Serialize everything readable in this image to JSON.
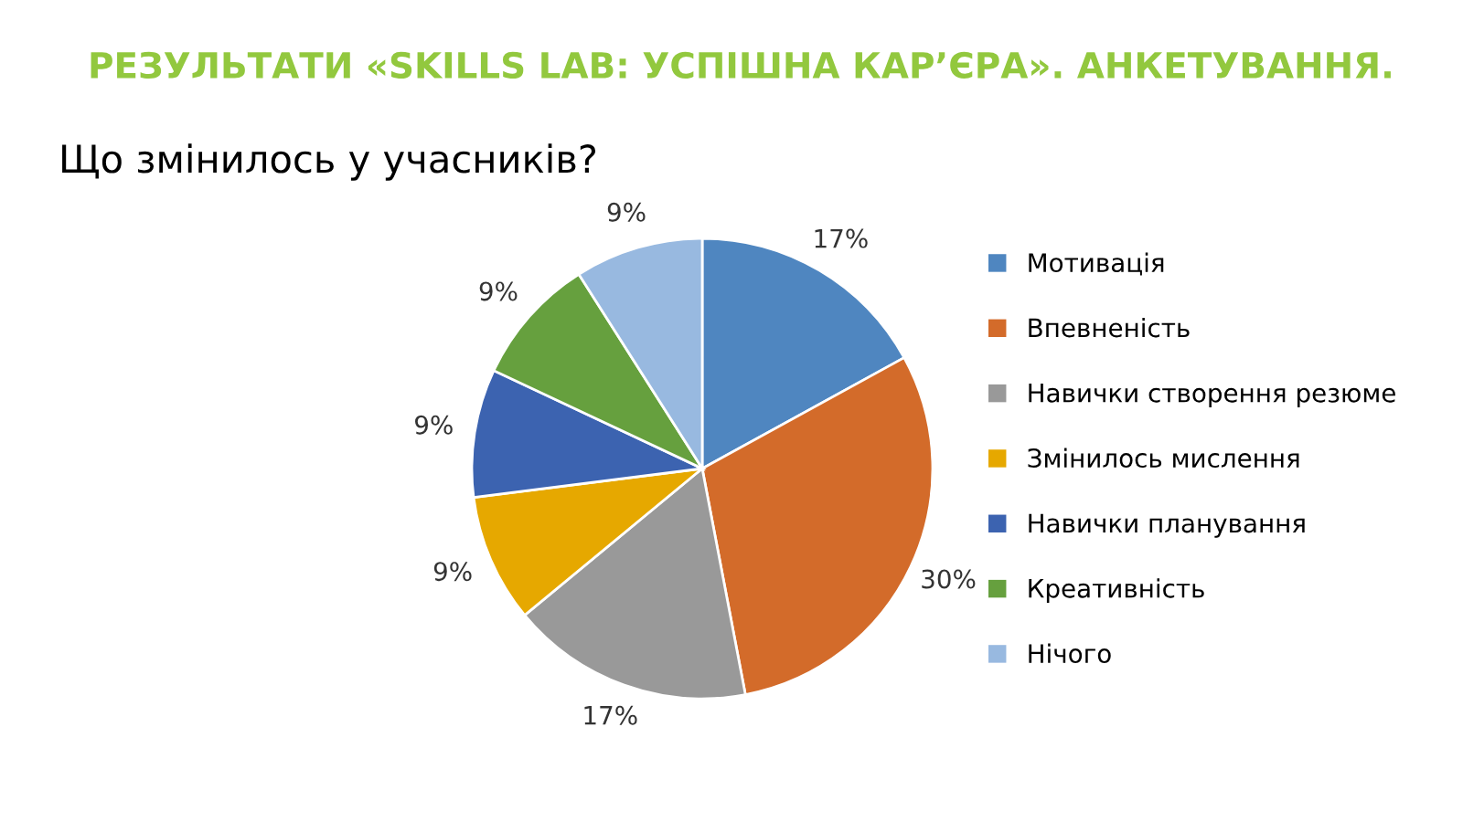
{
  "chart_data": {
    "type": "pie",
    "title": "РЕЗУЛЬТАТИ «SKILLS LAB: УСПІШНА КАР’ЄРА». АНКЕТУВАННЯ.",
    "subtitle": "Що змінилось у учасників?",
    "categories": [
      "Мотивація",
      "Впевненість",
      "Навички створення резюме",
      "Змінилось мислення",
      "Навички планування",
      "Креативність",
      "Нічого"
    ],
    "values": [
      17,
      30,
      17,
      9,
      9,
      9,
      9
    ],
    "value_labels": [
      "17%",
      "30%",
      "17%",
      "9%",
      "9%",
      "9%",
      "9%"
    ],
    "colors": [
      "#4f86c0",
      "#d36b2a",
      "#999999",
      "#e6a800",
      "#3c63b0",
      "#66a03e",
      "#98b9e0"
    ],
    "legend": "right"
  }
}
